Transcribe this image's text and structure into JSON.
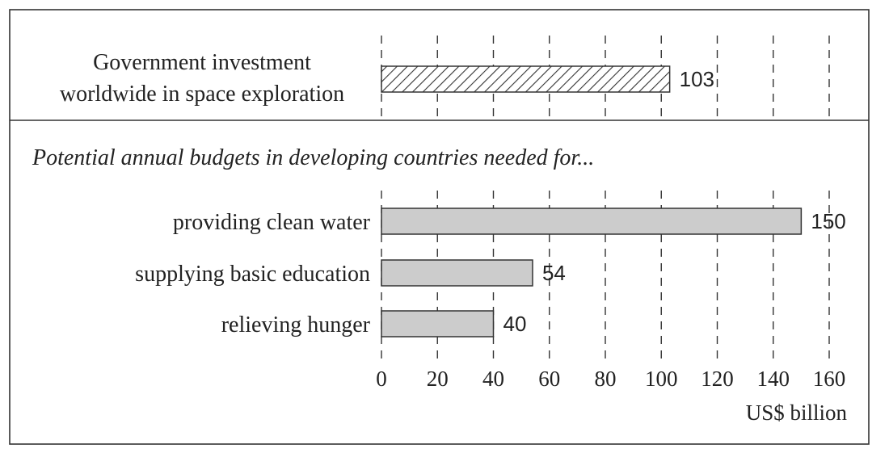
{
  "chart_data": {
    "type": "bar",
    "orientation": "horizontal",
    "top_panel": {
      "category_lines": [
        "Government investment",
        "worldwide in space exploration"
      ],
      "value": 103,
      "fill": "hatched"
    },
    "bottom_panel": {
      "heading": "Potential annual budgets in developing countries needed for...",
      "categories": [
        "providing clean water",
        "supplying basic education",
        "relieving hunger"
      ],
      "values": [
        150,
        54,
        40
      ],
      "fill": "#cccccc"
    },
    "xticks": [
      0,
      20,
      40,
      60,
      80,
      100,
      120,
      140,
      160
    ],
    "xlim": [
      0,
      160
    ],
    "xlabel": "US$ billion",
    "grid": "vertical dashed"
  }
}
